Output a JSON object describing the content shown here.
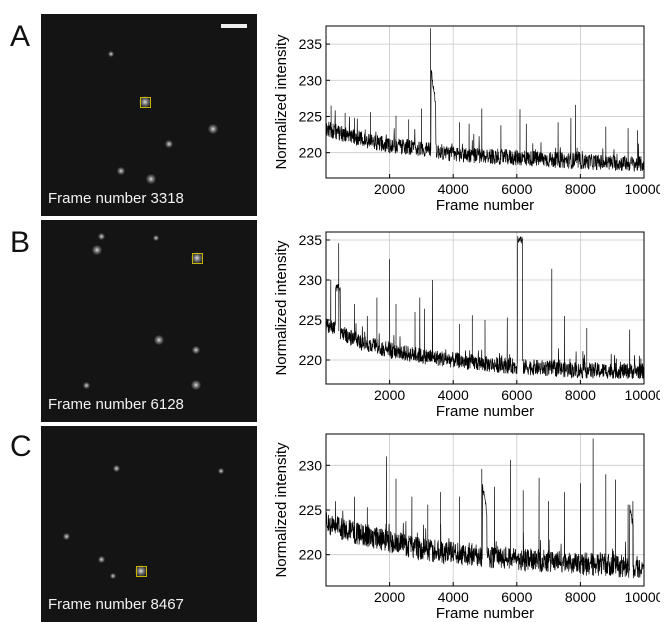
{
  "panels": [
    {
      "letter": "A",
      "caption": "Frame number 3318",
      "roi": [
        104,
        88
      ],
      "spots": [
        [
          104,
          88,
          12
        ],
        [
          172,
          115,
          10
        ],
        [
          128,
          130,
          8
        ],
        [
          110,
          165,
          10
        ],
        [
          220,
          163,
          8
        ],
        [
          80,
          157,
          8
        ],
        [
          152,
          208,
          8
        ],
        [
          70,
          40,
          6
        ]
      ],
      "chart_data": {
        "type": "line",
        "xlabel": "Frame number",
        "ylabel": "Normalized intensity",
        "xlim": [
          0,
          10000
        ],
        "ylim": [
          216.5,
          237.5
        ],
        "xticks": [
          2000,
          4000,
          6000,
          8000,
          10000
        ],
        "yticks": [
          220,
          225,
          230,
          235
        ],
        "series": [
          {
            "baseline": [
              [
                0,
                223.3
              ],
              [
                1000,
                222.0
              ],
              [
                2000,
                221.0
              ],
              [
                3000,
                220.6
              ],
              [
                4000,
                219.8
              ],
              [
                6000,
                219.3
              ],
              [
                8000,
                218.8
              ],
              [
                10000,
                218.4
              ]
            ],
            "noise": 1.1,
            "spikes": [
              [
                160,
                226.5
              ],
              [
                600,
                225.5
              ],
              [
                900,
                224.8
              ],
              [
                1400,
                225.6
              ],
              [
                2200,
                225.1
              ],
              [
                2600,
                224.6
              ],
              [
                3000,
                226.1
              ],
              [
                3290,
                237.2
              ],
              [
                4200,
                224.2
              ],
              [
                4500,
                224.0
              ],
              [
                4900,
                226.1
              ],
              [
                5500,
                223.8
              ],
              [
                6100,
                226.0
              ],
              [
                6300,
                224.0
              ],
              [
                7300,
                224.2
              ],
              [
                7700,
                224.8
              ],
              [
                7850,
                226.6
              ],
              [
                8800,
                223.6
              ],
              [
                9500,
                223.4
              ],
              [
                9800,
                223.1
              ]
            ],
            "plateaus": [
              [
                3300,
                3450,
                231.5,
                226.8
              ]
            ]
          }
        ]
      }
    },
    {
      "letter": "B",
      "caption": "Frame number 6128",
      "roi": [
        156,
        38
      ],
      "spots": [
        [
          156,
          38,
          12
        ],
        [
          56,
          30,
          10
        ],
        [
          60,
          16,
          7
        ],
        [
          118,
          120,
          10
        ],
        [
          155,
          130,
          8
        ],
        [
          155,
          165,
          10
        ],
        [
          45,
          165,
          7
        ],
        [
          115,
          18,
          6
        ]
      ],
      "chart_data": {
        "type": "line",
        "xlabel": "Frame number",
        "ylabel": "Normalized intensity",
        "xlim": [
          0,
          10000
        ],
        "ylim": [
          217,
          236
        ],
        "xticks": [
          2000,
          4000,
          6000,
          8000,
          10000
        ],
        "yticks": [
          220,
          225,
          230,
          235
        ],
        "series": [
          {
            "baseline": [
              [
                0,
                224.5
              ],
              [
                1000,
                222.3
              ],
              [
                2000,
                221.2
              ],
              [
                3000,
                220.5
              ],
              [
                4000,
                220.0
              ],
              [
                5000,
                219.5
              ],
              [
                6000,
                219.2
              ],
              [
                8000,
                218.7
              ],
              [
                10000,
                218.6
              ]
            ],
            "noise": 1.0,
            "spikes": [
              [
                150,
                230.0
              ],
              [
                400,
                234.6
              ],
              [
                900,
                227.0
              ],
              [
                1300,
                225.5
              ],
              [
                1600,
                227.8
              ],
              [
                2000,
                232.6
              ],
              [
                2200,
                227.0
              ],
              [
                2800,
                226.0
              ],
              [
                2950,
                227.8
              ],
              [
                3100,
                226.4
              ],
              [
                3350,
                230.0
              ],
              [
                4200,
                224.5
              ],
              [
                4600,
                225.6
              ],
              [
                5000,
                225.0
              ],
              [
                5700,
                225.3
              ],
              [
                7100,
                231.4
              ],
              [
                7500,
                225.5
              ],
              [
                8200,
                224.0
              ],
              [
                9550,
                223.8
              ]
            ],
            "plateaus": [
              [
                300,
                450,
                229.0,
                229.0
              ],
              [
                6020,
                6180,
                235.0,
                235.0
              ]
            ]
          }
        ]
      }
    },
    {
      "letter": "C",
      "caption": "Frame number 8467",
      "roi": [
        100,
        145
      ],
      "spots": [
        [
          100,
          145,
          12
        ],
        [
          75,
          42,
          7
        ],
        [
          25,
          110,
          7
        ],
        [
          60,
          133,
          7
        ],
        [
          72,
          150,
          6
        ],
        [
          180,
          45,
          6
        ]
      ],
      "chart_data": {
        "type": "line",
        "xlabel": "Frame number",
        "ylabel": "Normalized intensity",
        "xlim": [
          0,
          10000
        ],
        "ylim": [
          216.5,
          233.5
        ],
        "xticks": [
          2000,
          4000,
          6000,
          8000,
          10000
        ],
        "yticks": [
          220,
          225,
          230
        ],
        "series": [
          {
            "baseline": [
              [
                0,
                223.5
              ],
              [
                1000,
                222.4
              ],
              [
                2000,
                221.5
              ],
              [
                3000,
                220.6
              ],
              [
                4000,
                220.2
              ],
              [
                5000,
                219.8
              ],
              [
                6000,
                219.5
              ],
              [
                8000,
                219.0
              ],
              [
                10000,
                218.6
              ]
            ],
            "noise": 1.3,
            "spikes": [
              [
                300,
                226.0
              ],
              [
                900,
                226.5
              ],
              [
                1300,
                225.3
              ],
              [
                1900,
                231.0
              ],
              [
                2200,
                228.5
              ],
              [
                2700,
                226.5
              ],
              [
                3200,
                225.6
              ],
              [
                3600,
                227.0
              ],
              [
                4200,
                226.5
              ],
              [
                4900,
                229.6
              ],
              [
                5300,
                227.6
              ],
              [
                5800,
                230.6
              ],
              [
                6200,
                227.2
              ],
              [
                6700,
                228.6
              ],
              [
                7000,
                226.0
              ],
              [
                7500,
                227.0
              ],
              [
                8000,
                228.0
              ],
              [
                8400,
                233.0
              ],
              [
                8800,
                229.0
              ],
              [
                9100,
                228.4
              ],
              [
                9500,
                225.6
              ],
              [
                9650,
                226.0
              ]
            ],
            "plateaus": [
              [
                4920,
                5060,
                227.8,
                224.5
              ],
              [
                9550,
                9660,
                225.4,
                223.2
              ]
            ]
          }
        ]
      }
    }
  ]
}
